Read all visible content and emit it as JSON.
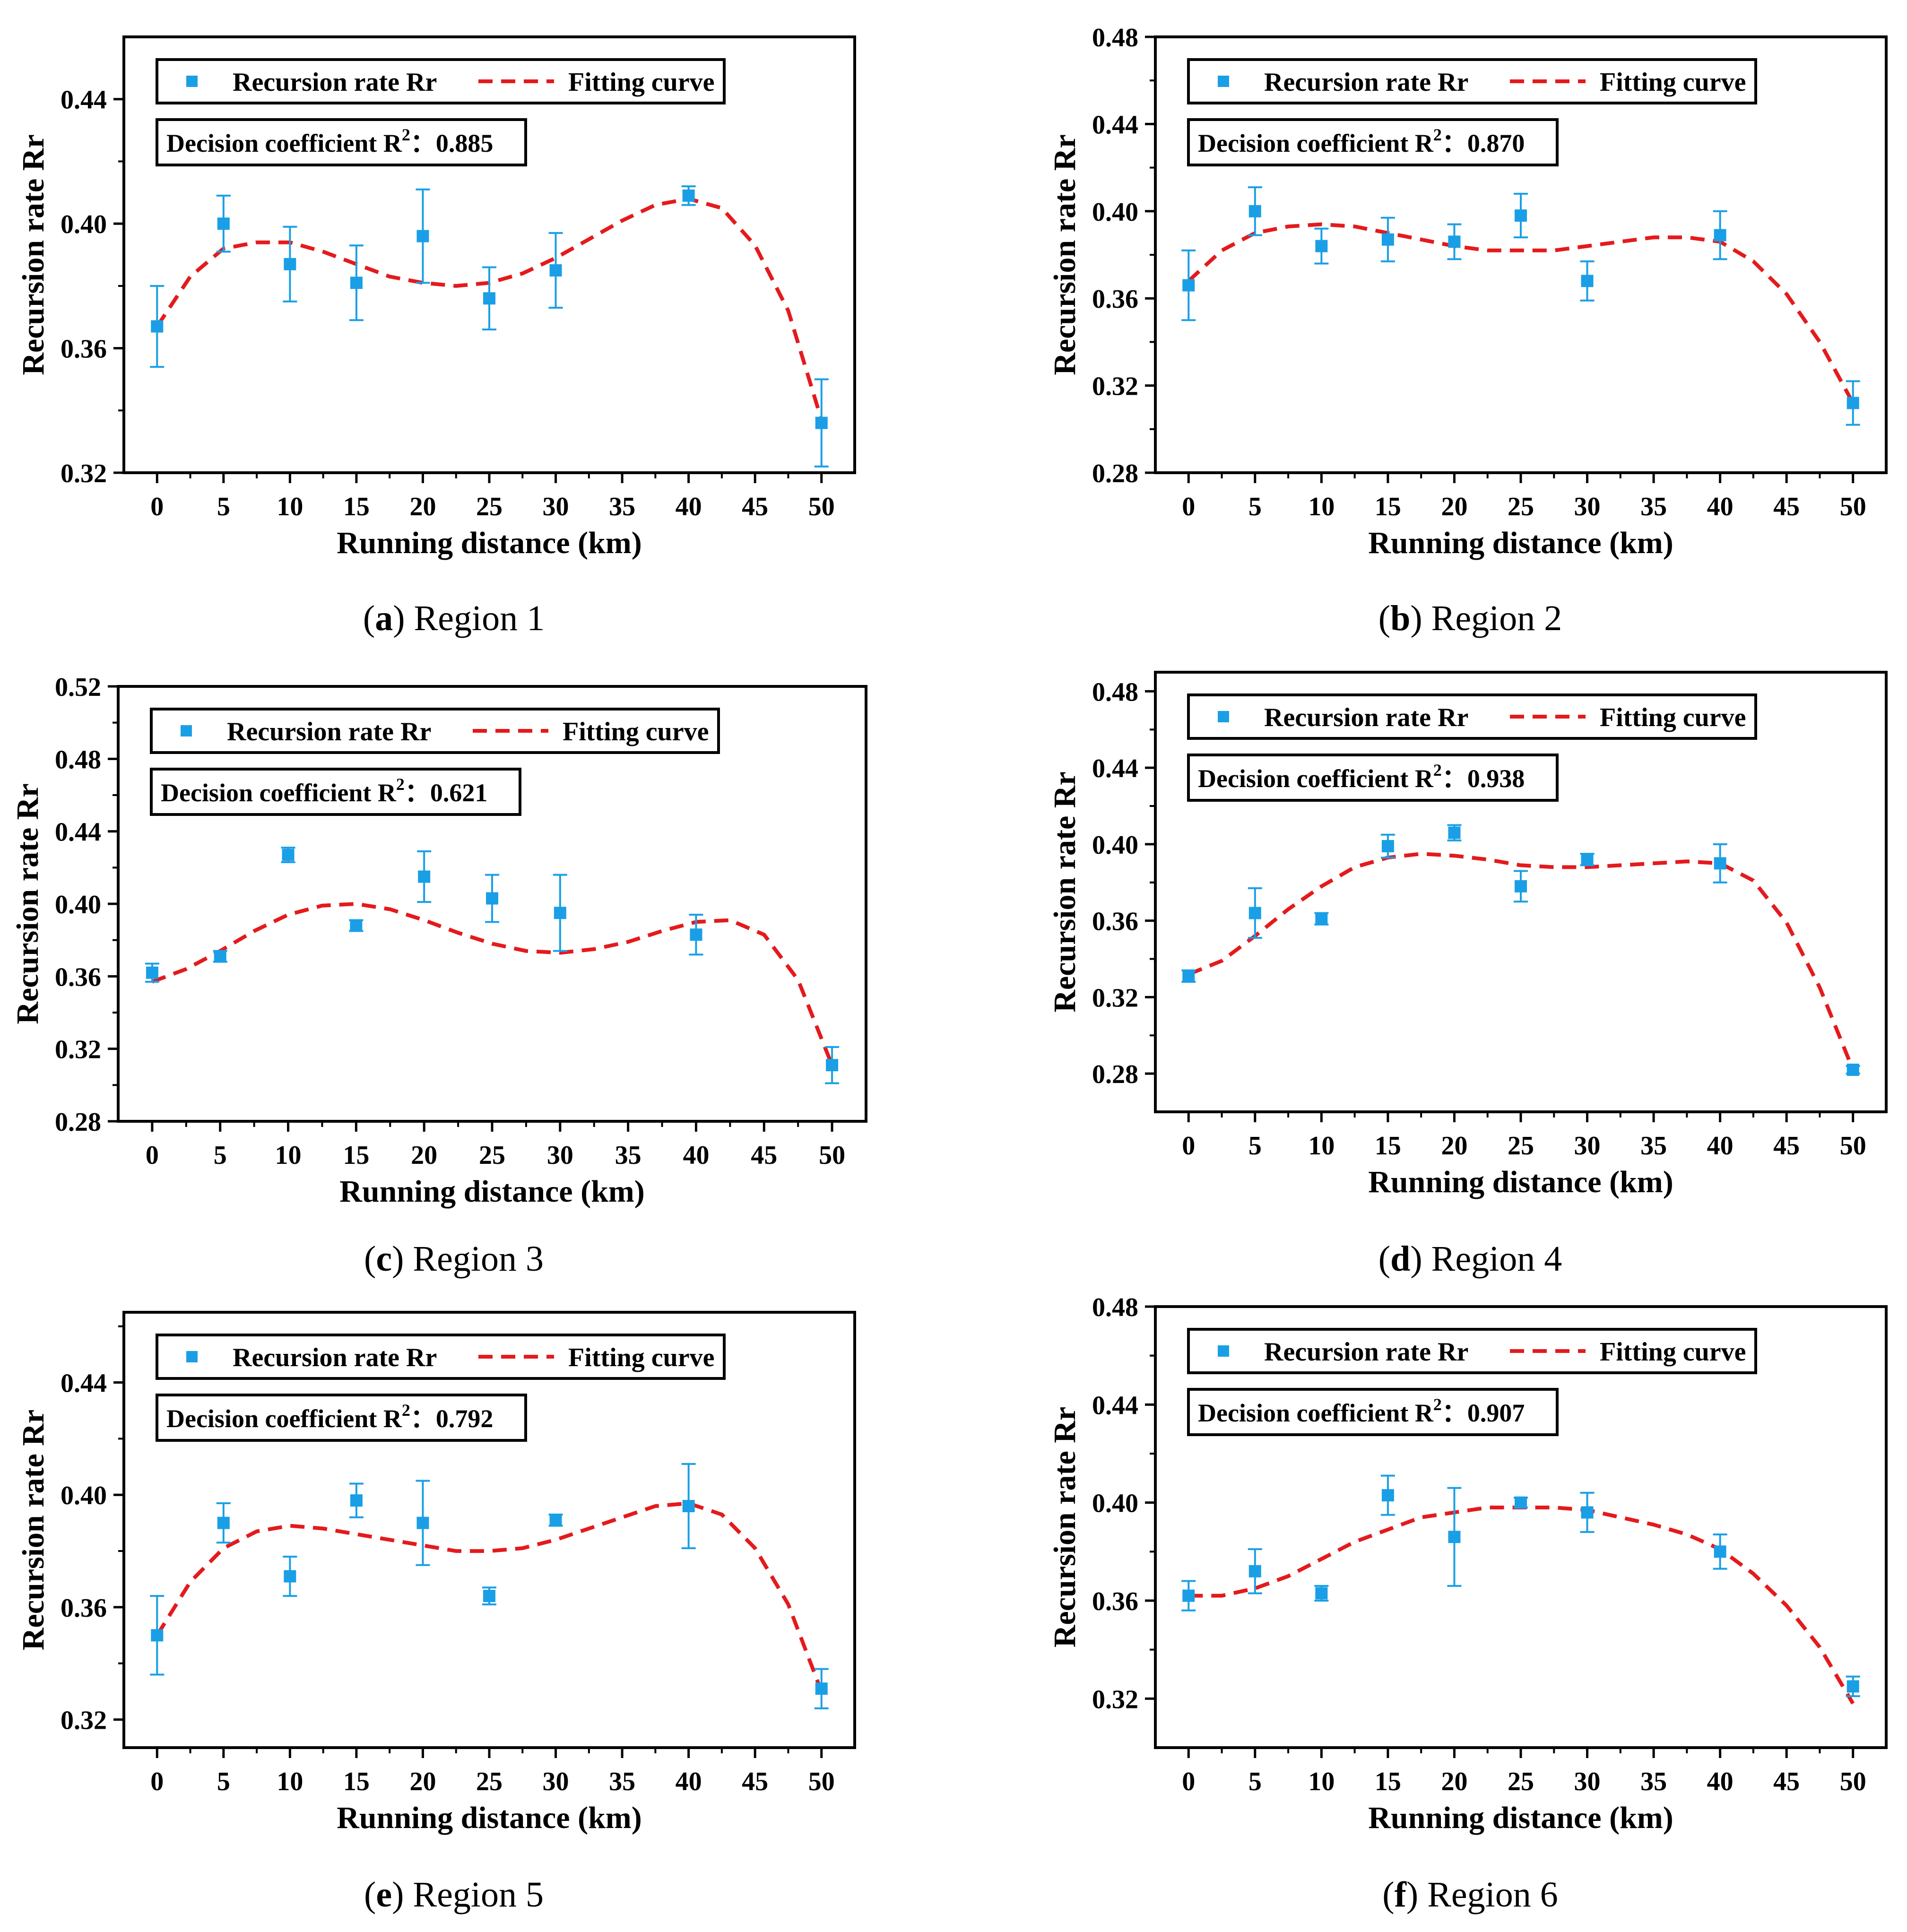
{
  "colors": {
    "points": "#1a9fe6",
    "fit": "#e41a1c",
    "axis": "#000000"
  },
  "chart_data": [
    {
      "type": "scatter",
      "panel": "a",
      "caption_letter": "a",
      "caption_text": "Region 1",
      "xlabel": "Running distance (km)",
      "ylabel": "Recursion rate Rr",
      "xlim": [
        -2.5,
        52.5
      ],
      "x_ticks": [
        "0",
        "5",
        "10",
        "15",
        "20",
        "25",
        "30",
        "35",
        "40",
        "45",
        "50"
      ],
      "ylim": [
        0.32,
        0.46
      ],
      "y_ticks": [
        "0.32",
        "0.36",
        "0.40",
        "0.44"
      ],
      "legend_points": "Recursion rate Rr",
      "legend_fit": "Fitting curve",
      "r2_text": "Decision coefficient R",
      "r2_sup": "2",
      "r2_value": "：0.885",
      "x": [
        0,
        5,
        10,
        15,
        20,
        25,
        30,
        40,
        50
      ],
      "y": [
        0.367,
        0.4,
        0.387,
        0.381,
        0.396,
        0.376,
        0.385,
        0.409,
        0.336
      ],
      "err": [
        0.013,
        0.009,
        0.012,
        0.012,
        0.015,
        0.01,
        0.012,
        0.003,
        0.014
      ],
      "fit_x": [
        0,
        2.5,
        5,
        7.5,
        10,
        12.5,
        15,
        17.5,
        20,
        22.5,
        25,
        27.5,
        30,
        32.5,
        35,
        37.5,
        40,
        42.5,
        45,
        47.5,
        50
      ],
      "fit_y": [
        0.367,
        0.383,
        0.392,
        0.394,
        0.394,
        0.391,
        0.387,
        0.383,
        0.381,
        0.38,
        0.381,
        0.384,
        0.389,
        0.395,
        0.401,
        0.406,
        0.408,
        0.405,
        0.393,
        0.372,
        0.337
      ]
    },
    {
      "type": "scatter",
      "panel": "b",
      "caption_letter": "b",
      "caption_text": "Region 2",
      "xlabel": "Running distance (km)",
      "ylabel": "Recursion rate Rr",
      "xlim": [
        -2.5,
        52.5
      ],
      "x_ticks": [
        "0",
        "5",
        "10",
        "15",
        "20",
        "25",
        "30",
        "35",
        "40",
        "45",
        "50"
      ],
      "ylim": [
        0.28,
        0.48
      ],
      "y_ticks": [
        "0.28",
        "0.32",
        "0.36",
        "0.40",
        "0.44",
        "0.48"
      ],
      "legend_points": "Recursion rate Rr",
      "legend_fit": "Fitting curve",
      "r2_text": "Decision coefficient R",
      "r2_sup": "2",
      "r2_value": "：0.870",
      "x": [
        0,
        5,
        10,
        15,
        20,
        25,
        30,
        40,
        50
      ],
      "y": [
        0.366,
        0.4,
        0.384,
        0.387,
        0.386,
        0.398,
        0.368,
        0.389,
        0.312
      ],
      "err": [
        0.016,
        0.011,
        0.008,
        0.01,
        0.008,
        0.01,
        0.009,
        0.011,
        0.01
      ],
      "fit_x": [
        0,
        2.5,
        5,
        7.5,
        10,
        12.5,
        15,
        17.5,
        20,
        22.5,
        25,
        27.5,
        30,
        32.5,
        35,
        37.5,
        40,
        42.5,
        45,
        47.5,
        50
      ],
      "fit_y": [
        0.368,
        0.382,
        0.39,
        0.393,
        0.394,
        0.393,
        0.39,
        0.387,
        0.384,
        0.382,
        0.382,
        0.382,
        0.384,
        0.386,
        0.388,
        0.388,
        0.386,
        0.377,
        0.362,
        0.34,
        0.312
      ]
    },
    {
      "type": "scatter",
      "panel": "c",
      "caption_letter": "c",
      "caption_text": "Region 3",
      "xlabel": "Running distance (km)",
      "ylabel": "Recursion rate Rr",
      "xlim": [
        -2.5,
        52.5
      ],
      "x_ticks": [
        "0",
        "5",
        "10",
        "15",
        "20",
        "25",
        "30",
        "35",
        "40",
        "45",
        "50"
      ],
      "ylim": [
        0.28,
        0.52
      ],
      "y_ticks": [
        "0.28",
        "0.32",
        "0.36",
        "0.40",
        "0.44",
        "0.48",
        "0.52"
      ],
      "legend_points": "Recursion rate Rr",
      "legend_fit": "Fitting curve",
      "r2_text": "Decision coefficient R",
      "r2_sup": "2",
      "r2_value": "：0.621",
      "x": [
        0,
        5,
        10,
        15,
        20,
        25,
        30,
        40,
        50
      ],
      "y": [
        0.362,
        0.371,
        0.427,
        0.388,
        0.415,
        0.403,
        0.395,
        0.383,
        0.311
      ],
      "err": [
        0.005,
        0.003,
        0.004,
        0.003,
        0.014,
        0.013,
        0.021,
        0.011,
        0.01
      ],
      "fit_x": [
        0,
        2.5,
        5,
        7.5,
        10,
        12.5,
        15,
        17.5,
        20,
        22.5,
        25,
        27.5,
        30,
        32.5,
        35,
        37.5,
        40,
        42.5,
        45,
        47.5,
        50
      ],
      "fit_y": [
        0.357,
        0.364,
        0.374,
        0.385,
        0.394,
        0.399,
        0.4,
        0.397,
        0.391,
        0.384,
        0.378,
        0.374,
        0.373,
        0.375,
        0.379,
        0.385,
        0.39,
        0.391,
        0.383,
        0.358,
        0.311
      ]
    },
    {
      "type": "scatter",
      "panel": "d",
      "caption_letter": "d",
      "caption_text": "Region 4",
      "xlabel": "Running distance (km)",
      "ylabel": "Recursion rate Rr",
      "xlim": [
        -2.5,
        52.5
      ],
      "x_ticks": [
        "0",
        "5",
        "10",
        "15",
        "20",
        "25",
        "30",
        "35",
        "40",
        "45",
        "50"
      ],
      "ylim": [
        0.26,
        0.49
      ],
      "y_ticks": [
        "0.28",
        "0.32",
        "0.36",
        "0.40",
        "0.44",
        "0.48"
      ],
      "legend_points": "Recursion rate Rr",
      "legend_fit": "Fitting curve",
      "r2_text": "Decision coefficient R",
      "r2_sup": "2",
      "r2_value": "：0.938",
      "x": [
        0,
        5,
        10,
        15,
        20,
        25,
        30,
        40,
        50
      ],
      "y": [
        0.331,
        0.364,
        0.361,
        0.399,
        0.406,
        0.378,
        0.392,
        0.39,
        0.282
      ],
      "err": [
        0.003,
        0.013,
        0.003,
        0.006,
        0.004,
        0.008,
        0.003,
        0.01,
        0.002
      ],
      "fit_x": [
        0,
        2.5,
        5,
        7.5,
        10,
        12.5,
        15,
        17.5,
        20,
        22.5,
        25,
        27.5,
        30,
        32.5,
        35,
        37.5,
        40,
        42.5,
        45,
        47.5,
        50
      ],
      "fit_y": [
        0.332,
        0.339,
        0.352,
        0.366,
        0.378,
        0.388,
        0.393,
        0.395,
        0.394,
        0.392,
        0.389,
        0.388,
        0.388,
        0.389,
        0.39,
        0.391,
        0.39,
        0.381,
        0.359,
        0.325,
        0.282
      ]
    },
    {
      "type": "scatter",
      "panel": "e",
      "caption_letter": "e",
      "caption_text": "Region 5",
      "xlabel": "Running distance (km)",
      "ylabel": "Recursion rate Rr",
      "xlim": [
        -2.5,
        52.5
      ],
      "x_ticks": [
        "0",
        "5",
        "10",
        "15",
        "20",
        "25",
        "30",
        "35",
        "40",
        "45",
        "50"
      ],
      "ylim": [
        0.31,
        0.465
      ],
      "y_ticks": [
        "0.32",
        "0.36",
        "0.40",
        "0.44"
      ],
      "legend_points": "Recursion rate Rr",
      "legend_fit": "Fitting curve",
      "r2_text": "Decision coefficient R",
      "r2_sup": "2",
      "r2_value": "：0.792",
      "x": [
        0,
        5,
        10,
        15,
        20,
        25,
        30,
        40,
        50
      ],
      "y": [
        0.35,
        0.39,
        0.371,
        0.398,
        0.39,
        0.364,
        0.391,
        0.396,
        0.331
      ],
      "err": [
        0.014,
        0.007,
        0.007,
        0.006,
        0.015,
        0.003,
        0.002,
        0.015,
        0.007
      ],
      "fit_x": [
        0,
        2.5,
        5,
        7.5,
        10,
        12.5,
        15,
        17.5,
        20,
        22.5,
        25,
        27.5,
        30,
        32.5,
        35,
        37.5,
        40,
        42.5,
        45,
        47.5,
        50
      ],
      "fit_y": [
        0.35,
        0.369,
        0.381,
        0.387,
        0.389,
        0.388,
        0.386,
        0.384,
        0.382,
        0.38,
        0.38,
        0.381,
        0.384,
        0.388,
        0.392,
        0.396,
        0.397,
        0.393,
        0.381,
        0.361,
        0.33
      ]
    },
    {
      "type": "scatter",
      "panel": "f",
      "caption_letter": "f",
      "caption_text": "Region 6",
      "xlabel": "Running distance (km)",
      "ylabel": "Recursion rate Rr",
      "xlim": [
        -2.5,
        52.5
      ],
      "x_ticks": [
        "0",
        "5",
        "10",
        "15",
        "20",
        "25",
        "30",
        "35",
        "40",
        "45",
        "50"
      ],
      "ylim": [
        0.3,
        0.48
      ],
      "y_ticks": [
        "0.32",
        "0.36",
        "0.40",
        "0.44",
        "0.48"
      ],
      "legend_points": "Recursion rate Rr",
      "legend_fit": "Fitting curve",
      "r2_text": "Decision coefficient R",
      "r2_sup": "2",
      "r2_value": "：0.907",
      "x": [
        0,
        5,
        10,
        15,
        20,
        25,
        30,
        40,
        50
      ],
      "y": [
        0.362,
        0.372,
        0.363,
        0.403,
        0.386,
        0.4,
        0.396,
        0.38,
        0.325
      ],
      "err": [
        0.006,
        0.009,
        0.003,
        0.008,
        0.02,
        0.002,
        0.008,
        0.007,
        0.004
      ],
      "fit_x": [
        0,
        2.5,
        5,
        7.5,
        10,
        12.5,
        15,
        17.5,
        20,
        22.5,
        25,
        27.5,
        30,
        32.5,
        35,
        37.5,
        40,
        42.5,
        45,
        47.5,
        50
      ],
      "fit_y": [
        0.362,
        0.362,
        0.365,
        0.37,
        0.377,
        0.384,
        0.389,
        0.394,
        0.396,
        0.398,
        0.398,
        0.398,
        0.397,
        0.394,
        0.391,
        0.387,
        0.381,
        0.371,
        0.358,
        0.341,
        0.318
      ]
    }
  ]
}
